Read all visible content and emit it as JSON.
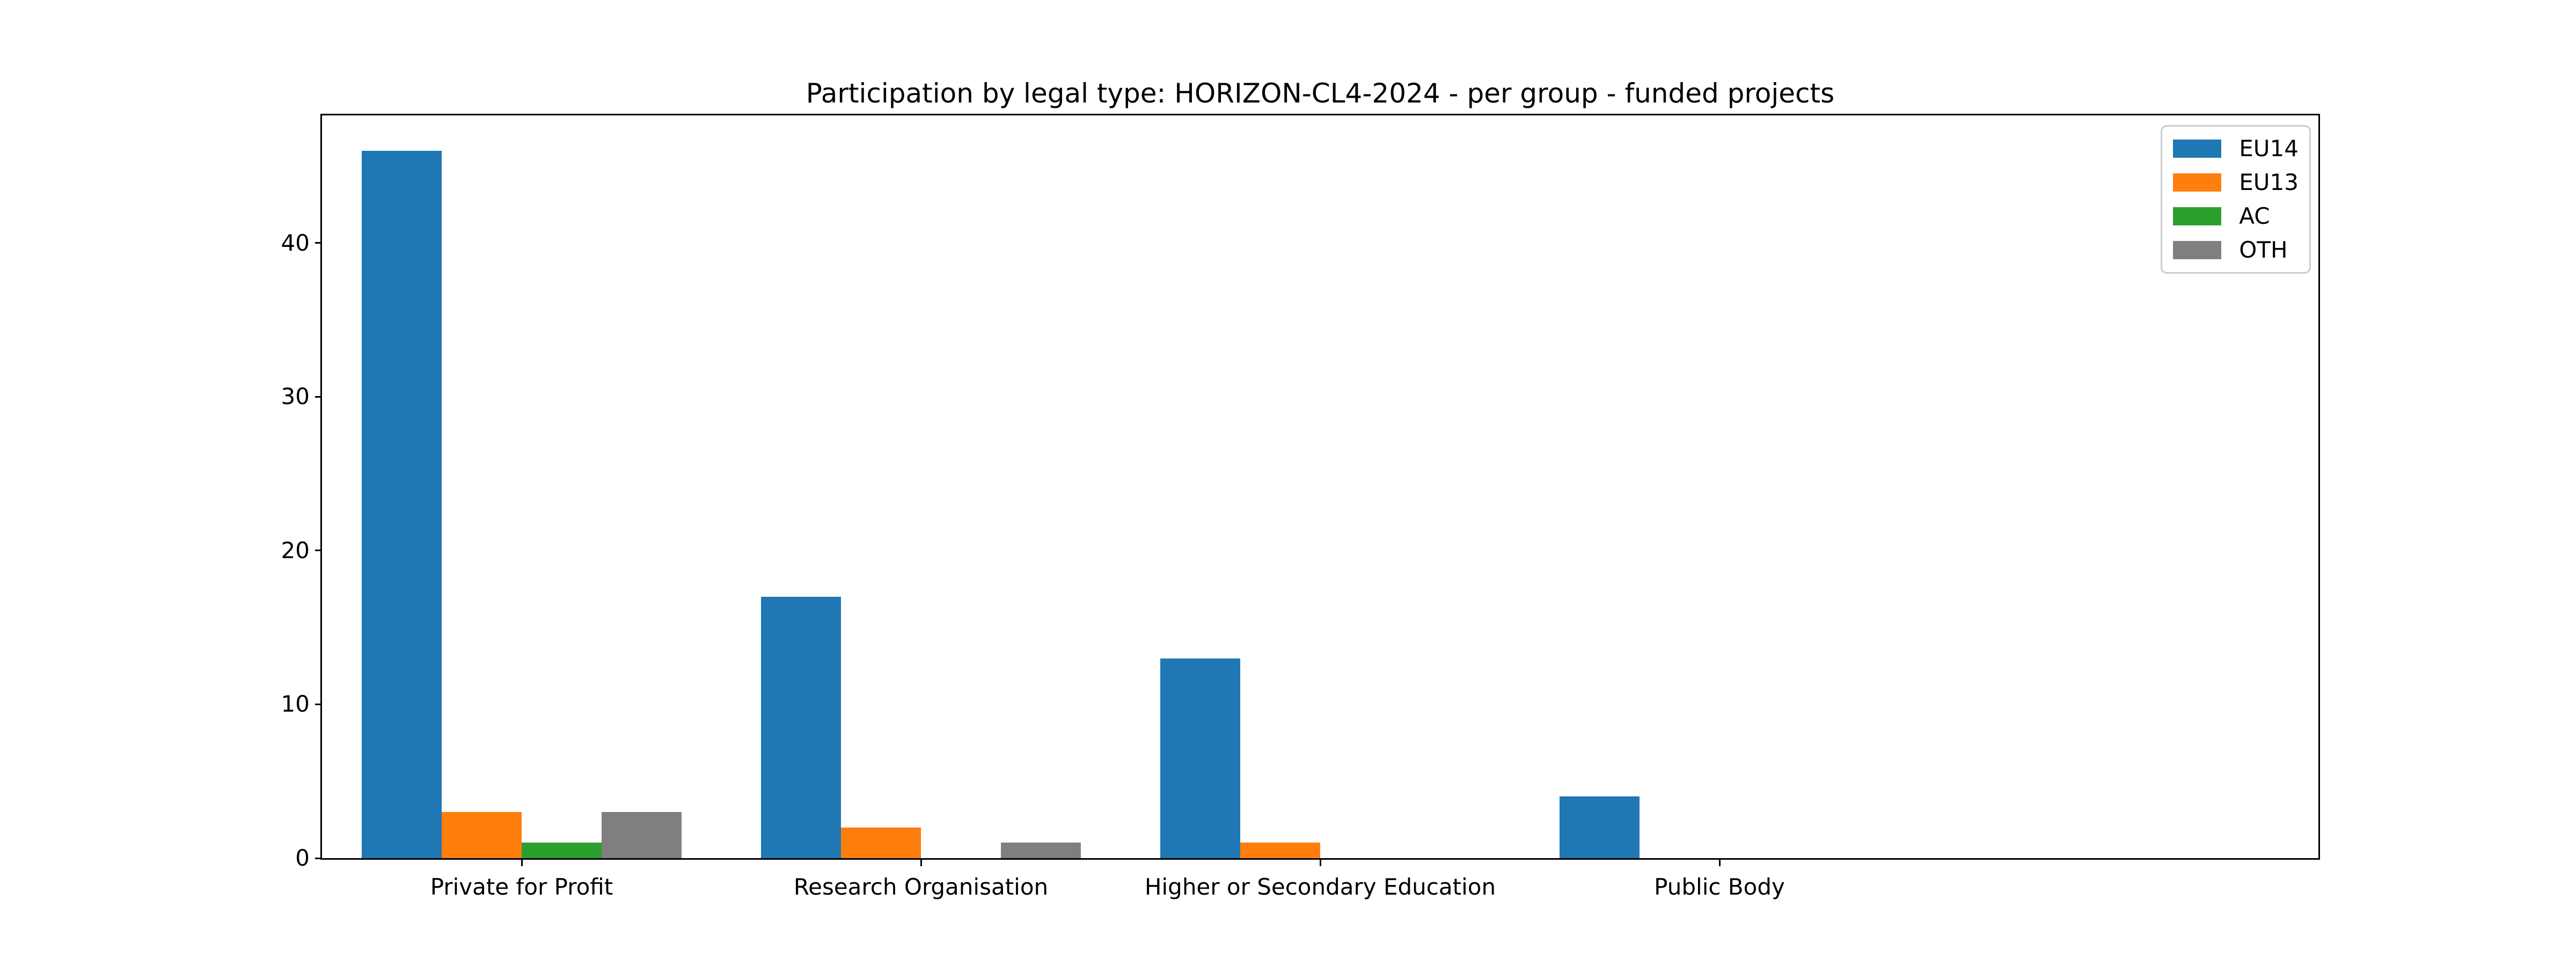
{
  "chart_data": {
    "type": "bar",
    "title": "Participation by legal type: HORIZON-CL4-2024 - per group - funded projects",
    "categories": [
      "Private for Profit",
      "Research Organisation",
      "Higher or Secondary Education",
      "Public Body"
    ],
    "series": [
      {
        "name": "EU14",
        "color": "#1f77b4",
        "values": [
          46,
          17,
          13,
          4
        ]
      },
      {
        "name": "EU13",
        "color": "#ff7f0e",
        "values": [
          3,
          2,
          1,
          0
        ]
      },
      {
        "name": "AC",
        "color": "#2ca02c",
        "values": [
          1,
          0,
          0,
          0
        ]
      },
      {
        "name": "OTH",
        "color": "#7f7f7f",
        "values": [
          3,
          1,
          0,
          0
        ]
      }
    ],
    "xlabel": "",
    "ylabel": "",
    "yticks": [
      0,
      10,
      20,
      30,
      40
    ],
    "ylim": [
      0,
      48.3
    ],
    "xlim_units": [
      -0.5,
      4.5
    ],
    "bar_width_units": 0.2,
    "grid": false,
    "legend_position": "upper right",
    "legend_entries": [
      "EU14",
      "EU13",
      "AC",
      "OTH"
    ]
  },
  "colors": {
    "background": "#ffffff",
    "axis": "#000000",
    "legend_border": "#cccccc"
  }
}
